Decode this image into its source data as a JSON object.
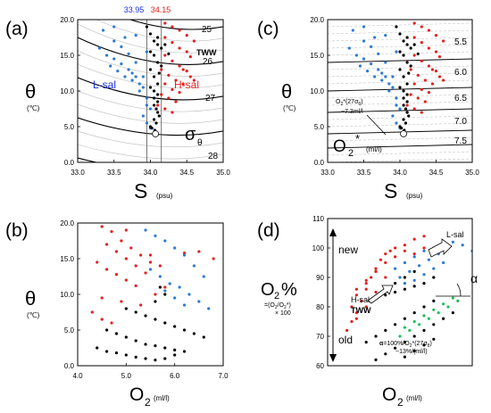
{
  "figure": {
    "panels": [
      {
        "key": "a",
        "label": "(a)",
        "ylabel": "θ",
        "yunit": "(℃)",
        "xlabel": "S",
        "xunit": "(psu)"
      },
      {
        "key": "b",
        "label": "(b)",
        "ylabel": "θ",
        "yunit": "(℃)",
        "xlabel": "O",
        "xsub": "2",
        "xunit": "(ml/l)"
      },
      {
        "key": "c",
        "label": "(c)",
        "ylabel": "θ",
        "yunit": "(℃)",
        "xlabel": "S",
        "xunit": "(psu)"
      },
      {
        "key": "d",
        "label": "(d)",
        "ylabel": "O",
        "ysub": "2",
        "ysuffix": "%",
        "yunit1": "=(O",
        "yunit1b": "2",
        "yunit1c": "/O",
        "yunit1d": "2",
        "yunit1e": "*)",
        "yunit2": "× 100",
        "xlabel": "O",
        "xsub": "2",
        "xunit": "(ml/l)"
      }
    ]
  },
  "colors": {
    "blue": "#1a2fe6",
    "red": "#ee1c1c",
    "black": "#000000",
    "green": "#1fbf5a",
    "marker_blue": "#2b7ad6",
    "marker_red": "#e62020",
    "grid": "#bbbbbb"
  },
  "chart_data": [
    {
      "panel": "a",
      "type": "scatter",
      "xlim": [
        33.0,
        35.0
      ],
      "ylim": [
        0.0,
        20.0
      ],
      "xticks": [
        "33.0",
        "33.5",
        "34.0",
        "34.5",
        "35.0"
      ],
      "yticks": [
        "0.0",
        "5.0",
        "10.0",
        "15.0",
        "20.0"
      ],
      "density_contours": [
        "25",
        "26",
        "27",
        "28"
      ],
      "vlines": [
        {
          "value": 33.95,
          "label": "33.95",
          "color": "blue"
        },
        {
          "value": 34.15,
          "label": "34.15",
          "color": "red"
        }
      ],
      "annotations": {
        "tww": "TWW",
        "lsal": "L-sal",
        "hsal": "H-sal",
        "sigma": "σ",
        "sigma_sub": "θ"
      },
      "end_point": {
        "x": 34.07,
        "y": 4.0
      },
      "series": [
        {
          "name": "L-sal",
          "color": "blue",
          "x": [
            33.3,
            33.4,
            33.5,
            33.6,
            33.7,
            33.75,
            33.8,
            33.85,
            33.9,
            33.95,
            34.0,
            33.5,
            33.6,
            33.7,
            33.8,
            33.9,
            33.45,
            33.55,
            33.65,
            33.75,
            33.85,
            33.95,
            33.35,
            33.5,
            33.65,
            33.8,
            33.95,
            33.9,
            33.95,
            34.0
          ],
          "y": [
            16.0,
            15.0,
            14.5,
            13.8,
            13.0,
            12.5,
            12.0,
            11.0,
            10.5,
            9.0,
            7.5,
            17.0,
            16.2,
            15.2,
            14.0,
            12.0,
            13.5,
            12.8,
            12.0,
            11.5,
            10.0,
            8.0,
            18.5,
            19.0,
            17.5,
            17.8,
            15.5,
            6.5,
            5.5,
            4.8
          ]
        },
        {
          "name": "H-sal",
          "color": "red",
          "x": [
            34.2,
            34.3,
            34.4,
            34.5,
            34.6,
            34.2,
            34.3,
            34.4,
            34.5,
            34.55,
            34.2,
            34.3,
            34.4,
            34.5,
            34.15,
            34.25,
            34.35,
            34.45,
            34.2,
            34.3,
            34.4,
            34.15,
            34.25,
            34.35,
            34.1,
            34.2,
            34.3,
            34.45,
            34.55,
            34.6
          ],
          "y": [
            19.5,
            19.0,
            18.5,
            17.8,
            17.0,
            17.5,
            16.8,
            16.0,
            15.5,
            14.8,
            15.0,
            14.2,
            13.5,
            12.8,
            13.0,
            12.2,
            11.5,
            11.0,
            11.0,
            10.2,
            9.8,
            9.5,
            9.0,
            8.5,
            8.0,
            7.5,
            7.0,
            13.0,
            12.0,
            11.5
          ]
        },
        {
          "name": "TWW",
          "color": "black",
          "x": [
            33.95,
            34.0,
            34.05,
            34.1,
            34.0,
            34.05,
            34.1,
            34.15,
            34.0,
            34.05,
            34.1,
            34.0,
            34.05,
            34.1,
            34.05,
            34.1,
            34.05,
            34.08,
            34.1,
            34.12,
            34.05,
            34.08,
            34.0,
            34.02,
            34.06,
            34.1,
            34.15,
            34.12,
            34.2,
            34.25
          ],
          "y": [
            19.0,
            18.0,
            17.0,
            16.5,
            15.5,
            15.0,
            14.0,
            13.5,
            13.0,
            12.0,
            11.0,
            10.5,
            10.0,
            9.5,
            9.0,
            8.5,
            8.0,
            7.5,
            7.0,
            6.5,
            6.0,
            5.5,
            5.0,
            4.8,
            4.5,
            17.5,
            16.0,
            12.5,
            16.5,
            15.2
          ]
        }
      ]
    },
    {
      "panel": "b",
      "type": "scatter",
      "xlim": [
        4.0,
        7.0
      ],
      "ylim": [
        0.0,
        20.0
      ],
      "xticks": [
        "4.0",
        "5.0",
        "6.0",
        "7.0"
      ],
      "yticks": [
        "0.0",
        "5.0",
        "10.0",
        "15.0",
        "20.0"
      ],
      "series": [
        {
          "name": "red",
          "color": "red",
          "x": [
            4.5,
            4.7,
            4.9,
            5.1,
            5.3,
            5.5,
            4.6,
            4.8,
            5.0,
            5.2,
            5.4,
            4.4,
            4.6,
            4.8,
            5.0,
            5.2,
            5.6,
            4.5,
            4.9,
            5.3,
            4.3,
            4.5,
            4.7,
            5.5,
            5.7,
            6.2,
            6.5,
            6.8,
            5.0,
            5.8
          ],
          "y": [
            19.5,
            18.8,
            17.5,
            16.5,
            15.5,
            14.5,
            17.0,
            16.0,
            15.0,
            14.0,
            13.0,
            14.5,
            13.5,
            12.8,
            12.0,
            11.2,
            10.0,
            9.5,
            9.0,
            8.5,
            7.5,
            6.5,
            6.0,
            15.5,
            14.0,
            15.8,
            16.0,
            15.0,
            19.0,
            11.0
          ]
        },
        {
          "name": "blue",
          "color": "blue",
          "x": [
            5.4,
            5.6,
            5.8,
            6.0,
            6.2,
            6.4,
            6.6,
            5.5,
            5.7,
            5.9,
            6.1,
            6.3,
            6.5,
            6.7,
            5.8,
            6.0,
            6.2
          ],
          "y": [
            19.0,
            18.2,
            17.5,
            16.5,
            15.5,
            14.0,
            12.5,
            13.5,
            12.5,
            11.5,
            11.0,
            10.0,
            9.0,
            8.0,
            10.5,
            9.5,
            8.5
          ]
        },
        {
          "name": "black",
          "color": "black",
          "x": [
            5.0,
            5.2,
            5.4,
            5.6,
            5.8,
            6.0,
            6.2,
            6.4,
            6.6,
            4.6,
            4.8,
            5.0,
            5.2,
            5.4,
            5.6,
            5.8,
            6.0,
            6.2,
            4.4,
            4.6,
            4.8,
            5.0,
            5.2,
            5.4,
            5.6,
            5.8,
            6.0,
            5.6,
            5.8,
            5.7
          ],
          "y": [
            8.0,
            7.5,
            7.0,
            6.5,
            6.0,
            5.5,
            5.0,
            4.5,
            4.0,
            5.0,
            4.5,
            4.0,
            3.5,
            3.0,
            2.8,
            2.5,
            2.2,
            2.0,
            2.5,
            2.0,
            1.8,
            1.5,
            1.2,
            1.0,
            0.8,
            1.0,
            1.5,
            9.0,
            10.0,
            11.0
          ]
        }
      ]
    },
    {
      "panel": "c",
      "type": "scatter",
      "xlim": [
        33.0,
        35.0
      ],
      "ylim": [
        0.0,
        20.0
      ],
      "xticks": [
        "33.0",
        "33.5",
        "34.0",
        "34.5",
        "35.0"
      ],
      "yticks": [
        "0.0",
        "5.0",
        "10.0",
        "15.0",
        "20.0"
      ],
      "o2_contours": [
        "5.5",
        "6.0",
        "6.5",
        "7.0",
        "7.5"
      ],
      "annotation_lines": {
        "line1a": "O",
        "line1b": "2",
        "line1c": "*(27σ",
        "line1d": "θ",
        "line1e": ")",
        "line2": "~7.3ml/l"
      },
      "o2star_label": {
        "main": "O",
        "sub": "2",
        "sup": "*",
        "unit": "(ml/l)"
      },
      "end_point": {
        "x": 34.05,
        "y": 4.0
      },
      "series": [
        {
          "name": "blue",
          "color": "blue",
          "x": [
            33.3,
            33.4,
            33.5,
            33.6,
            33.7,
            33.75,
            33.8,
            33.85,
            33.9,
            33.95,
            34.0,
            33.5,
            33.6,
            33.7,
            33.8,
            33.9,
            33.45,
            33.55,
            33.65,
            33.75,
            33.85,
            33.95,
            33.35,
            33.5,
            33.65,
            33.8,
            33.95,
            33.9,
            33.95,
            34.0
          ],
          "y": [
            16.0,
            15.0,
            14.5,
            13.8,
            13.0,
            12.5,
            12.0,
            11.0,
            10.5,
            9.0,
            7.5,
            17.0,
            16.2,
            15.2,
            14.0,
            12.0,
            13.5,
            12.8,
            12.0,
            11.5,
            10.0,
            8.0,
            18.5,
            19.0,
            17.5,
            17.8,
            15.5,
            6.5,
            5.5,
            4.8
          ]
        },
        {
          "name": "red",
          "color": "red",
          "x": [
            34.2,
            34.3,
            34.4,
            34.5,
            34.6,
            34.2,
            34.3,
            34.4,
            34.5,
            34.55,
            34.2,
            34.3,
            34.4,
            34.5,
            34.15,
            34.25,
            34.35,
            34.45,
            34.2,
            34.3,
            34.4,
            34.15,
            34.25,
            34.35,
            34.1,
            34.2,
            34.3,
            34.45,
            34.55,
            34.6
          ],
          "y": [
            19.5,
            19.0,
            18.5,
            17.8,
            17.0,
            17.5,
            16.8,
            16.0,
            15.5,
            14.8,
            15.0,
            14.2,
            13.5,
            12.8,
            13.0,
            12.2,
            11.5,
            11.0,
            11.0,
            10.2,
            9.8,
            9.5,
            9.0,
            8.5,
            8.0,
            7.5,
            7.0,
            13.0,
            12.0,
            11.5
          ]
        },
        {
          "name": "black",
          "color": "black",
          "x": [
            33.95,
            34.0,
            34.05,
            34.1,
            34.0,
            34.05,
            34.1,
            34.15,
            34.0,
            34.05,
            34.1,
            34.0,
            34.05,
            34.1,
            34.05,
            34.1,
            34.05,
            34.08,
            34.1,
            34.12,
            34.05,
            34.08,
            34.0,
            34.02,
            34.06,
            34.1,
            34.15,
            34.12,
            34.2,
            34.25
          ],
          "y": [
            19.0,
            18.0,
            17.0,
            16.5,
            15.5,
            15.0,
            14.0,
            13.5,
            13.0,
            12.0,
            11.0,
            10.5,
            10.0,
            9.5,
            9.0,
            8.5,
            8.0,
            7.5,
            7.0,
            6.5,
            6.0,
            5.5,
            5.0,
            4.8,
            4.5,
            17.5,
            16.0,
            12.5,
            16.5,
            15.2
          ]
        }
      ]
    },
    {
      "panel": "d",
      "type": "scatter",
      "xlim": [
        4.0,
        7.0
      ],
      "ylim": [
        60,
        110
      ],
      "yticks": [
        "60",
        "70",
        "80",
        "90",
        "100",
        "110"
      ],
      "annotations": {
        "new": "new",
        "old": "old",
        "lsal": "L-sal",
        "hsal": "H-sal",
        "tww": "TWW",
        "alpha": "α",
        "alpha_def1a": "α",
        "alpha_def1b": "=100%/O",
        "alpha_def1c": "2",
        "alpha_def1d": "*(27σ",
        "alpha_def1e": "θ",
        "alpha_def1f": ")",
        "alpha_def2": "~13%/(ml/l)"
      },
      "series": [
        {
          "name": "red",
          "color": "red",
          "x": [
            4.5,
            4.6,
            4.7,
            4.8,
            4.9,
            5.0,
            5.1,
            5.2,
            5.3,
            5.4,
            4.5,
            4.6,
            4.8,
            5.0,
            5.2,
            5.4,
            5.6,
            4.4,
            4.6,
            4.8,
            5.0,
            5.2,
            4.6,
            4.8,
            5.0,
            5.6,
            5.8,
            6.0,
            5.8,
            6.0
          ],
          "y": [
            75,
            78,
            82,
            86,
            90,
            93,
            96,
            98,
            99,
            100,
            80,
            84,
            88,
            92,
            95,
            97,
            99,
            72,
            76,
            80,
            85,
            90,
            86,
            89,
            92,
            101,
            103,
            104,
            98,
            100
          ]
        },
        {
          "name": "blue",
          "color": "blue",
          "x": [
            5.4,
            5.6,
            5.8,
            6.0,
            6.2,
            6.4,
            6.6,
            5.5,
            5.7,
            5.9,
            6.1,
            6.3,
            6.5,
            5.6,
            5.8,
            6.0,
            6.2,
            6.4,
            6.8,
            7.0
          ],
          "y": [
            93,
            95,
            97,
            99,
            100,
            101,
            102,
            90,
            92,
            94,
            96,
            98,
            100,
            88,
            89,
            91,
            93,
            95,
            101,
            99
          ]
        },
        {
          "name": "black",
          "color": "black",
          "x": [
            5.0,
            5.2,
            5.4,
            5.6,
            5.8,
            6.0,
            6.2,
            6.4,
            6.6,
            4.8,
            5.0,
            5.2,
            5.4,
            5.6,
            5.8,
            6.0,
            6.2,
            5.2,
            5.4,
            5.6,
            5.8,
            6.0,
            6.2,
            5.6,
            5.8,
            6.0,
            6.2,
            5.4,
            5.6,
            5.8
          ],
          "y": [
            62,
            64,
            66,
            68,
            70,
            72,
            74,
            76,
            78,
            68,
            70,
            72,
            74,
            76,
            78,
            80,
            82,
            84,
            85,
            86,
            87,
            88,
            90,
            63,
            65,
            67,
            69,
            88,
            90,
            92
          ]
        },
        {
          "name": "green",
          "color": "green",
          "x": [
            5.5,
            5.7,
            5.9,
            6.1,
            6.3,
            6.5,
            6.7,
            5.6,
            5.8,
            6.0,
            6.2,
            6.4,
            6.6
          ],
          "y": [
            70,
            72,
            74,
            76,
            78,
            80,
            82,
            73,
            75,
            77,
            79,
            81,
            83
          ]
        }
      ]
    }
  ]
}
